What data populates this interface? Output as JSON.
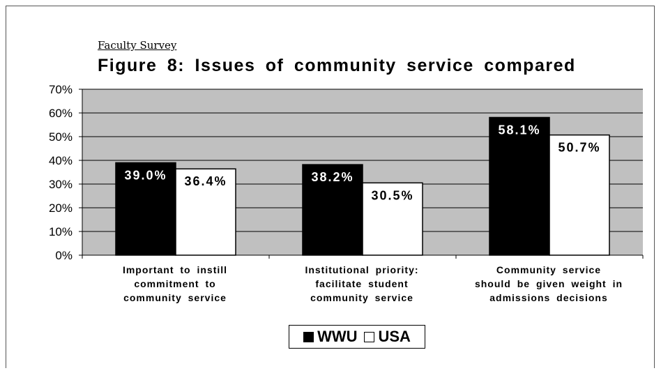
{
  "chart_data": {
    "type": "bar",
    "subtitle": "Faculty Survey",
    "title": "Figure 8: Issues of community service compared",
    "categories": [
      "Important to instill commitment to community service",
      "Institutional priority: facilitate student community service",
      "Community service should be given weight in admissions decisions"
    ],
    "category_lines": [
      [
        "Important to instill",
        "commitment to",
        "community service"
      ],
      [
        "Institutional priority:",
        "facilitate student",
        "community service"
      ],
      [
        "Community service",
        "should be given weight in",
        "admissions decisions"
      ]
    ],
    "series": [
      {
        "name": "WWU",
        "values": [
          39.0,
          38.2,
          58.1
        ],
        "labels": [
          "39.0%",
          "38.2%",
          "58.1%"
        ],
        "color": "#000000"
      },
      {
        "name": "USA",
        "values": [
          36.4,
          30.5,
          50.7
        ],
        "labels": [
          "36.4%",
          "30.5%",
          "50.7%"
        ],
        "color": "#ffffff"
      }
    ],
    "y_ticks": [
      "0%",
      "10%",
      "20%",
      "30%",
      "40%",
      "50%",
      "60%",
      "70%"
    ],
    "ylim": [
      0,
      70
    ],
    "plot_background": "#c0c0c0",
    "grid": true,
    "legend_position": "bottom-center"
  }
}
